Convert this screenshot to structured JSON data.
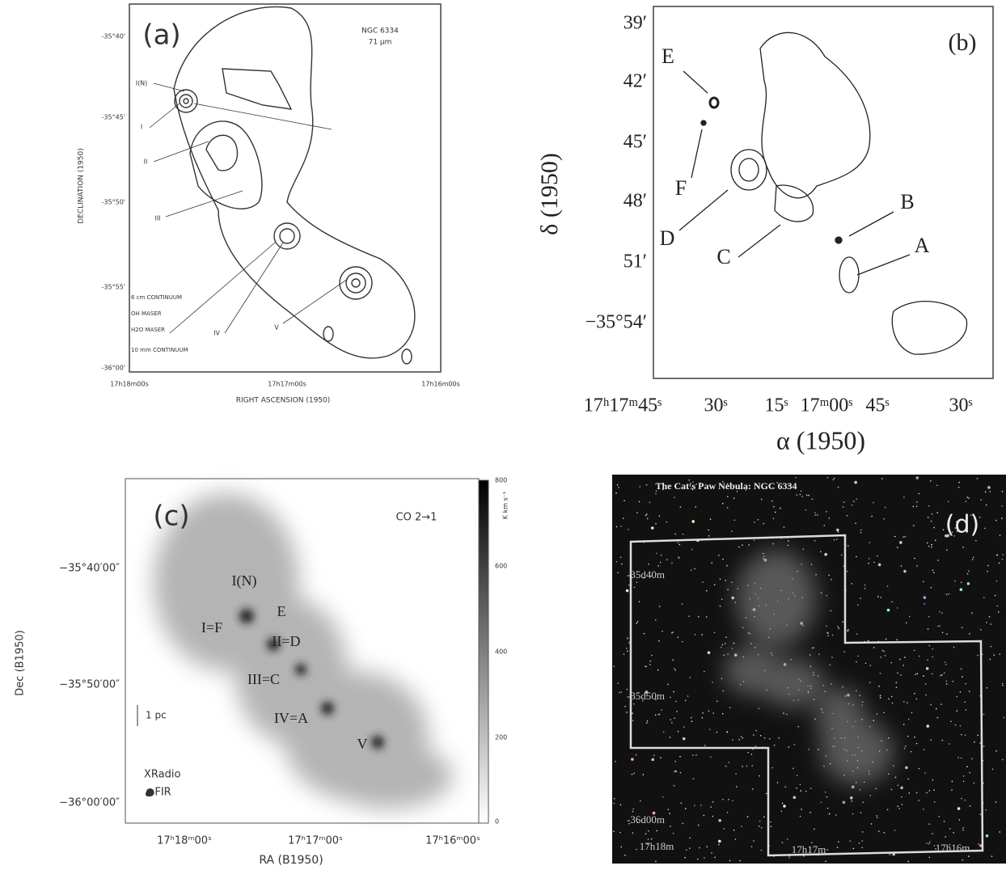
{
  "panel_a": {
    "label": "(a)",
    "object": "NGC 6334",
    "band": "71 µm",
    "y_axis_title": "DECLINATION (1950)",
    "x_axis_title": "RIGHT ASCENSION (1950)",
    "y_ticks": [
      "-35°40'",
      "-35°45'",
      "-35°50'",
      "-35°55'",
      "-36°00'"
    ],
    "x_ticks": [
      "17h18m00s",
      "17h17m00s",
      "17h16m00s"
    ],
    "sources": [
      "I(N)",
      "I",
      "II",
      "III",
      "IV",
      "V"
    ],
    "legend": [
      "6 cm CONTINUUM",
      "OH MASER",
      "H2O MASER",
      "10 mm CONTINUUM"
    ]
  },
  "panel_b": {
    "label": "(b)",
    "y_ticks": [
      "39′",
      "42′",
      "45′",
      "48′",
      "51′",
      "−35°54′"
    ],
    "x_ticks": [
      "17ʰ17ᵐ45ˢ",
      "30ˢ",
      "15ˢ",
      "17ᵐ00ˢ",
      "45ˢ",
      "30ˢ"
    ],
    "y_axis_title": "δ (1950)",
    "x_axis_title": "α (1950)",
    "sources": [
      "E",
      "F",
      "D",
      "C",
      "B",
      "A"
    ]
  },
  "panel_c": {
    "label": "(c)",
    "line": "CO 2→1",
    "y_ticks": [
      "−35°40′00″",
      "−35°50′00″",
      "−36°00′00″"
    ],
    "x_ticks": [
      "17ʰ18ᵐ00ˢ",
      "17ʰ17ᵐ00ˢ",
      "17ʰ16ᵐ00ˢ"
    ],
    "y_axis_title": "Dec (B1950)",
    "x_axis_title": "RA (B1950)",
    "colorbar_ticks": [
      "800",
      "600",
      "400",
      "200",
      "0"
    ],
    "colorbar_unit": "K km s⁻¹",
    "sources": [
      "I(N)",
      "E",
      "I=F",
      "II=D",
      "III=C",
      "IV=A",
      "V"
    ],
    "scale": "1 pc",
    "legend": [
      "XRadio",
      "●FIR"
    ]
  },
  "panel_d": {
    "title": "The Cat's Paw Nebula: NGC 6334",
    "label": "(d)",
    "y_ticks": [
      "-35d40m",
      "-35d50m",
      "-36d00m"
    ],
    "x_ticks": [
      "17h18m",
      "17h17m",
      "17h16m"
    ]
  }
}
